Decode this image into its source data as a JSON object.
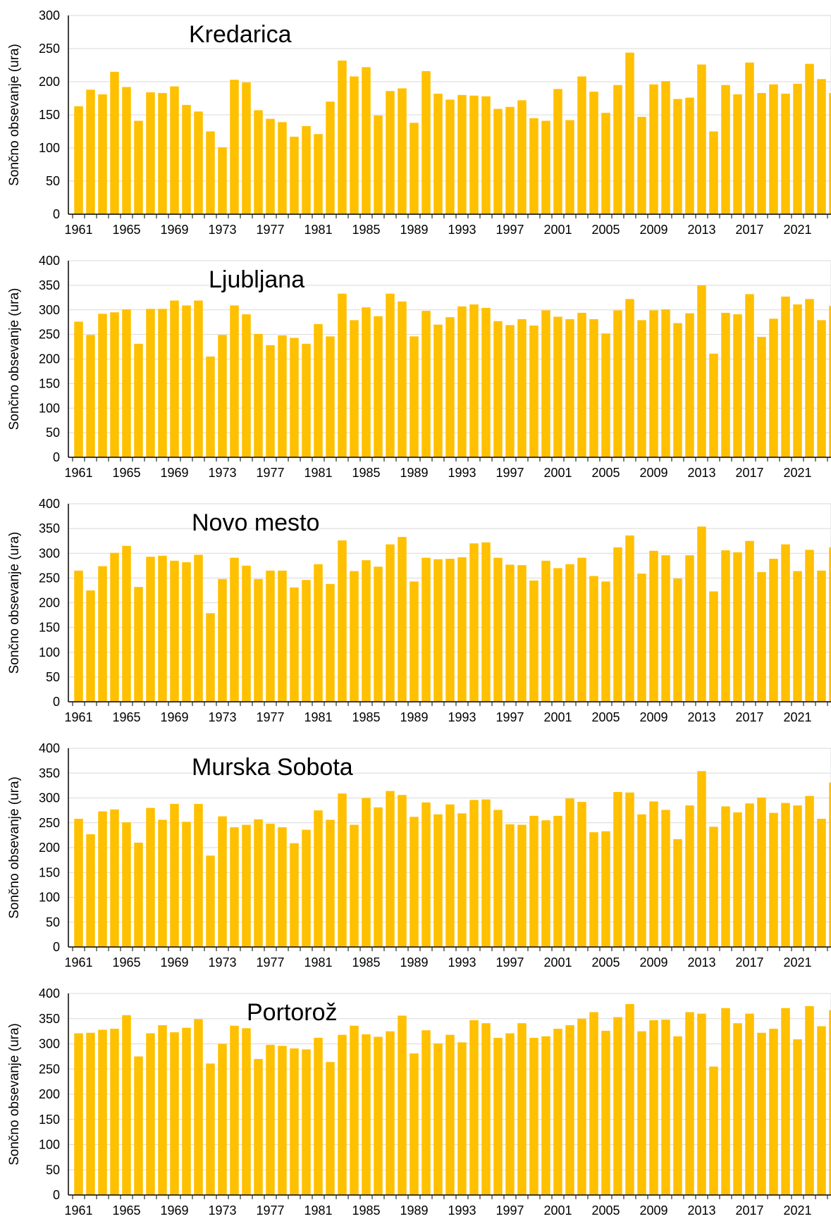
{
  "colors": {
    "bar": "#FFC000",
    "grid": "#D9D9D9",
    "axis": "#000000"
  },
  "chart_data": [
    {
      "type": "bar",
      "title": "Kredarica",
      "ylabel": "Sončno obsevanje (ura)",
      "ylim": [
        0,
        300
      ],
      "yticks": [
        0,
        50,
        100,
        150,
        200,
        250,
        300
      ],
      "xticks": [
        "1961",
        "1965",
        "1969",
        "1973",
        "1977",
        "1981",
        "1985",
        "1989",
        "1993",
        "1997",
        "2001",
        "2005",
        "2009",
        "2013",
        "2017",
        "2021"
      ],
      "start_year": 1961,
      "values": [
        163,
        188,
        181,
        215,
        192,
        141,
        184,
        183,
        193,
        165,
        155,
        125,
        101,
        203,
        199,
        157,
        144,
        139,
        117,
        133,
        121,
        170,
        232,
        208,
        222,
        149,
        186,
        190,
        138,
        216,
        182,
        173,
        180,
        179,
        178,
        159,
        162,
        172,
        145,
        141,
        189,
        142,
        208,
        185,
        153,
        195,
        244,
        147,
        196,
        201,
        174,
        176,
        226,
        125,
        195,
        181,
        229,
        183,
        196,
        182,
        197,
        227,
        204,
        183
      ]
    },
    {
      "type": "bar",
      "title": "Ljubljana",
      "ylabel": "Sončno obsevanje (ura)",
      "ylim": [
        0,
        400
      ],
      "yticks": [
        0,
        50,
        100,
        150,
        200,
        250,
        300,
        350,
        400
      ],
      "xticks": [
        "1961",
        "1965",
        "1969",
        "1973",
        "1977",
        "1981",
        "1985",
        "1989",
        "1993",
        "1997",
        "2001",
        "2005",
        "2009",
        "2013",
        "2017",
        "2021"
      ],
      "start_year": 1961,
      "values": [
        276,
        249,
        292,
        295,
        301,
        231,
        302,
        302,
        319,
        309,
        319,
        205,
        249,
        309,
        291,
        251,
        228,
        248,
        243,
        231,
        271,
        246,
        333,
        279,
        305,
        287,
        333,
        317,
        246,
        298,
        270,
        285,
        307,
        311,
        304,
        277,
        269,
        281,
        268,
        299,
        286,
        281,
        294,
        281,
        252,
        299,
        322,
        279,
        299,
        301,
        273,
        293,
        350,
        211,
        294,
        291,
        332,
        245,
        282,
        327,
        311,
        322,
        279,
        308
      ]
    },
    {
      "type": "bar",
      "title": "Novo mesto",
      "ylabel": "Sončno obsevanje (ura)",
      "ylim": [
        0,
        400
      ],
      "yticks": [
        0,
        50,
        100,
        150,
        200,
        250,
        300,
        350,
        400
      ],
      "xticks": [
        "1961",
        "1965",
        "1969",
        "1973",
        "1977",
        "1981",
        "1985",
        "1989",
        "1993",
        "1997",
        "2001",
        "2005",
        "2009",
        "2013",
        "2017",
        "2021"
      ],
      "start_year": 1961,
      "values": [
        265,
        225,
        274,
        301,
        315,
        232,
        293,
        295,
        285,
        282,
        297,
        179,
        248,
        291,
        275,
        248,
        265,
        265,
        231,
        246,
        278,
        238,
        326,
        264,
        286,
        273,
        318,
        333,
        243,
        291,
        288,
        289,
        292,
        320,
        322,
        291,
        277,
        276,
        245,
        285,
        270,
        278,
        291,
        254,
        243,
        312,
        336,
        259,
        305,
        296,
        249,
        296,
        354,
        223,
        306,
        302,
        325,
        262,
        289,
        318,
        264,
        307,
        265,
        312
      ]
    },
    {
      "type": "bar",
      "title": "Murska Sobota",
      "ylabel": "Sončno obsevanje (ura)",
      "ylim": [
        0,
        400
      ],
      "yticks": [
        0,
        50,
        100,
        150,
        200,
        250,
        300,
        350,
        400
      ],
      "xticks": [
        "1961",
        "1965",
        "1969",
        "1973",
        "1977",
        "1981",
        "1985",
        "1989",
        "1993",
        "1997",
        "2001",
        "2005",
        "2009",
        "2013",
        "2017",
        "2021"
      ],
      "start_year": 1961,
      "values": [
        258,
        227,
        273,
        277,
        251,
        210,
        280,
        256,
        288,
        252,
        288,
        184,
        263,
        241,
        246,
        257,
        248,
        241,
        209,
        236,
        275,
        256,
        309,
        246,
        300,
        281,
        314,
        306,
        262,
        291,
        267,
        287,
        269,
        296,
        297,
        276,
        247,
        246,
        264,
        255,
        264,
        299,
        292,
        231,
        233,
        312,
        311,
        267,
        293,
        276,
        217,
        285,
        354,
        242,
        283,
        271,
        289,
        301,
        270,
        290,
        285,
        304,
        258,
        331
      ]
    },
    {
      "type": "bar",
      "title": "Portorož",
      "ylabel": "Sončno obsevanje (ura)",
      "ylim": [
        0,
        400
      ],
      "yticks": [
        0,
        50,
        100,
        150,
        200,
        250,
        300,
        350,
        400
      ],
      "xticks": [
        "1961",
        "1965",
        "1969",
        "1973",
        "1977",
        "1981",
        "1985",
        "1989",
        "1993",
        "1997",
        "2001",
        "2005",
        "2009",
        "2013",
        "2017",
        "2021"
      ],
      "start_year": 1961,
      "values": [
        321,
        322,
        328,
        330,
        357,
        275,
        321,
        337,
        323,
        332,
        349,
        261,
        300,
        336,
        331,
        270,
        298,
        296,
        291,
        289,
        312,
        264,
        318,
        336,
        319,
        314,
        325,
        356,
        281,
        327,
        301,
        318,
        303,
        347,
        341,
        312,
        321,
        341,
        312,
        315,
        330,
        337,
        350,
        363,
        326,
        353,
        379,
        325,
        347,
        348,
        315,
        363,
        360,
        255,
        371,
        341,
        360,
        322,
        330,
        371,
        309,
        375,
        335,
        367
      ]
    }
  ]
}
